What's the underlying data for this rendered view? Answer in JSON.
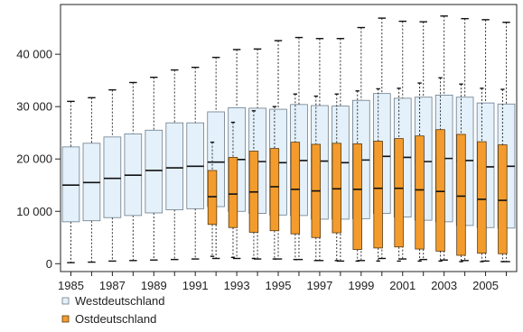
{
  "chart_data": {
    "type": "boxplot",
    "title": "",
    "xlabel": "",
    "ylabel": "",
    "ylim": [
      -1500,
      49500
    ],
    "y_ticks": [
      0,
      10000,
      20000,
      30000,
      40000
    ],
    "y_tick_labels": [
      "0",
      "10 000",
      "20 000",
      "30 000",
      "40 000"
    ],
    "x_tick_labels": [
      "1985",
      "1987",
      "1989",
      "1991",
      "1993",
      "1995",
      "1997",
      "1999",
      "2001",
      "2003",
      "2005"
    ],
    "years": [
      1985,
      1986,
      1987,
      1988,
      1989,
      1990,
      1991,
      1992,
      1993,
      1994,
      1995,
      1996,
      1997,
      1998,
      1999,
      2000,
      2001,
      2002,
      2003,
      2004,
      2005,
      2006
    ],
    "legend_position": "bottom-left",
    "series": [
      {
        "name": "Westdeutschland",
        "color": "#e4f1fb",
        "stroke": "#6b7c8a",
        "boxes": [
          {
            "year": 1985,
            "whisker_low": 200,
            "q1": 8000,
            "median": 15000,
            "q3": 22300,
            "whisker_high": 31000
          },
          {
            "year": 1986,
            "whisker_low": 300,
            "q1": 8200,
            "median": 15500,
            "q3": 23000,
            "whisker_high": 31700
          },
          {
            "year": 1987,
            "whisker_low": 500,
            "q1": 8800,
            "median": 16300,
            "q3": 24200,
            "whisker_high": 33200
          },
          {
            "year": 1988,
            "whisker_low": 600,
            "q1": 9200,
            "median": 16900,
            "q3": 24800,
            "whisker_high": 34600
          },
          {
            "year": 1989,
            "whisker_low": 700,
            "q1": 9700,
            "median": 17800,
            "q3": 25500,
            "whisker_high": 35600
          },
          {
            "year": 1990,
            "whisker_low": 800,
            "q1": 10300,
            "median": 18300,
            "q3": 26900,
            "whisker_high": 37000
          },
          {
            "year": 1991,
            "whisker_low": 900,
            "q1": 10500,
            "median": 18600,
            "q3": 26900,
            "whisker_high": 37500
          },
          {
            "year": 1992,
            "whisker_low": 1000,
            "q1": 10900,
            "median": 19400,
            "q3": 29000,
            "whisker_high": 39400
          },
          {
            "year": 1993,
            "whisker_low": 1000,
            "q1": 10000,
            "median": 19900,
            "q3": 29800,
            "whisker_high": 40900
          },
          {
            "year": 1994,
            "whisker_low": 900,
            "q1": 9600,
            "median": 19500,
            "q3": 29700,
            "whisker_high": 41000
          },
          {
            "year": 1995,
            "whisker_low": 900,
            "q1": 9300,
            "median": 19300,
            "q3": 29500,
            "whisker_high": 42600
          },
          {
            "year": 1996,
            "whisker_low": 800,
            "q1": 9200,
            "median": 19700,
            "q3": 30400,
            "whisker_high": 43200
          },
          {
            "year": 1997,
            "whisker_low": 600,
            "q1": 8500,
            "median": 19600,
            "q3": 30200,
            "whisker_high": 43000
          },
          {
            "year": 1998,
            "whisker_low": 500,
            "q1": 8500,
            "median": 19300,
            "q3": 30100,
            "whisker_high": 43000
          },
          {
            "year": 1999,
            "whisker_low": 600,
            "q1": 8600,
            "median": 19800,
            "q3": 31200,
            "whisker_high": 45100
          },
          {
            "year": 2000,
            "whisker_low": 1000,
            "q1": 9600,
            "median": 20500,
            "q3": 32500,
            "whisker_high": 46900
          },
          {
            "year": 2001,
            "whisker_low": 900,
            "q1": 8900,
            "median": 20300,
            "q3": 31600,
            "whisker_high": 46300
          },
          {
            "year": 2002,
            "whisker_low": 800,
            "q1": 8300,
            "median": 19500,
            "q3": 31800,
            "whisker_high": 46200
          },
          {
            "year": 2003,
            "whisker_low": 700,
            "q1": 8000,
            "median": 20100,
            "q3": 32200,
            "whisker_high": 47300
          },
          {
            "year": 2004,
            "whisker_low": 600,
            "q1": 7300,
            "median": 19700,
            "q3": 31800,
            "whisker_high": 46800
          },
          {
            "year": 2005,
            "whisker_low": 500,
            "q1": 6900,
            "median": 18500,
            "q3": 30700,
            "whisker_high": 46600
          },
          {
            "year": 2006,
            "whisker_low": 400,
            "q1": 6800,
            "median": 18600,
            "q3": 30500,
            "whisker_high": 46100
          }
        ]
      },
      {
        "name": "Ostdeutschland",
        "color": "#f39c2d",
        "stroke": "#5a3a10",
        "boxes": [
          {
            "year": 1992,
            "whisker_low": 1400,
            "q1": 7500,
            "median": 12800,
            "q3": 17800,
            "whisker_high": 23200
          },
          {
            "year": 1993,
            "whisker_low": 1200,
            "q1": 6900,
            "median": 13300,
            "q3": 20300,
            "whisker_high": 27000
          },
          {
            "year": 1994,
            "whisker_low": 1000,
            "q1": 6000,
            "median": 13700,
            "q3": 21500,
            "whisker_high": 29200
          },
          {
            "year": 1995,
            "whisker_low": 900,
            "q1": 6300,
            "median": 14700,
            "q3": 22000,
            "whisker_high": 30000
          },
          {
            "year": 1996,
            "whisker_low": 800,
            "q1": 5700,
            "median": 14200,
            "q3": 23200,
            "whisker_high": 32400
          },
          {
            "year": 1997,
            "whisker_low": 600,
            "q1": 5000,
            "median": 13900,
            "q3": 22800,
            "whisker_high": 32000
          },
          {
            "year": 1998,
            "whisker_low": 600,
            "q1": 5900,
            "median": 14300,
            "q3": 23000,
            "whisker_high": 32400
          },
          {
            "year": 1999,
            "whisker_low": 500,
            "q1": 2700,
            "median": 14200,
            "q3": 22900,
            "whisker_high": 33000
          },
          {
            "year": 2000,
            "whisker_low": 500,
            "q1": 3000,
            "median": 14400,
            "q3": 23400,
            "whisker_high": 33400
          },
          {
            "year": 2001,
            "whisker_low": 500,
            "q1": 3200,
            "median": 14400,
            "q3": 23900,
            "whisker_high": 33500
          },
          {
            "year": 2002,
            "whisker_low": 500,
            "q1": 2800,
            "median": 14100,
            "q3": 24400,
            "whisker_high": 34500
          },
          {
            "year": 2003,
            "whisker_low": 500,
            "q1": 2400,
            "median": 13800,
            "q3": 25600,
            "whisker_high": 35500
          },
          {
            "year": 2004,
            "whisker_low": 400,
            "q1": 1600,
            "median": 12900,
            "q3": 24700,
            "whisker_high": 34300
          },
          {
            "year": 2005,
            "whisker_low": 400,
            "q1": 2000,
            "median": 12300,
            "q3": 23300,
            "whisker_high": 33500
          },
          {
            "year": 2006,
            "whisker_low": 400,
            "q1": 1900,
            "median": 12100,
            "q3": 22700,
            "whisker_high": 33300
          }
        ]
      }
    ]
  }
}
